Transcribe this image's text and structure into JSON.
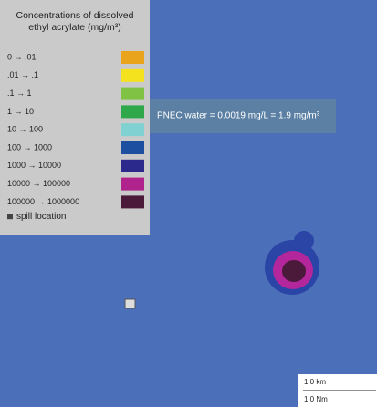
{
  "legend": {
    "title": "Concentrations of dissolved ethyl acrylate (mg/m³)",
    "items": [
      {
        "label": "0 → .01",
        "color": "#e9a41c"
      },
      {
        "label": ".01 → .1",
        "color": "#f5e21e"
      },
      {
        "label": ".1 → 1",
        "color": "#80c243"
      },
      {
        "label": "1 → 10",
        "color": "#2fa84b"
      },
      {
        "label": "10 → 100",
        "color": "#80d2d2"
      },
      {
        "label": "100 → 1000",
        "color": "#1d4fa1"
      },
      {
        "label": "1000 → 10000",
        "color": "#2b2a8c"
      },
      {
        "label": "10000 → 100000",
        "color": "#b0228c"
      },
      {
        "label": "100000 → 1000000",
        "color": "#4b1a3a"
      }
    ],
    "spill_label": "spill location"
  },
  "annotation": "PNEC water = 0.0019 mg/L = 1.9 mg/m³",
  "scale": {
    "km": "1.0 km",
    "nm": "1.0 Nm"
  }
}
